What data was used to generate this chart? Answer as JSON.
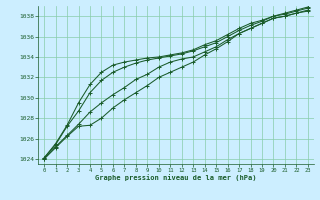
{
  "xlabel": "Graphe pression niveau de la mer (hPa)",
  "ylim": [
    1023.5,
    1039.0
  ],
  "xlim": [
    -0.5,
    23.5
  ],
  "yticks": [
    1024,
    1026,
    1028,
    1030,
    1032,
    1034,
    1036,
    1038
  ],
  "xticks": [
    0,
    1,
    2,
    3,
    4,
    5,
    6,
    7,
    8,
    9,
    10,
    11,
    12,
    13,
    14,
    15,
    16,
    17,
    18,
    19,
    20,
    21,
    22,
    23
  ],
  "bg_color": "#cceeff",
  "grid_color": "#88ccaa",
  "line_color": "#1a5c2a",
  "lines": [
    [
      1024.0,
      1025.1,
      1026.2,
      1027.2,
      1027.3,
      1028.0,
      1029.0,
      1029.8,
      1030.5,
      1031.2,
      1032.0,
      1032.5,
      1033.0,
      1033.5,
      1034.2,
      1034.8,
      1035.5,
      1036.3,
      1036.8,
      1037.3,
      1037.8,
      1038.0,
      1038.3,
      1038.5
    ],
    [
      1024.0,
      1025.2,
      1026.3,
      1027.4,
      1028.6,
      1029.5,
      1030.3,
      1031.0,
      1031.8,
      1032.3,
      1033.0,
      1033.5,
      1033.8,
      1034.0,
      1034.5,
      1035.0,
      1035.7,
      1036.3,
      1036.8,
      1037.3,
      1037.8,
      1038.0,
      1038.3,
      1038.6
    ],
    [
      1024.1,
      1025.4,
      1027.2,
      1028.7,
      1030.5,
      1031.7,
      1032.5,
      1033.0,
      1033.4,
      1033.7,
      1033.9,
      1034.1,
      1034.3,
      1034.6,
      1035.0,
      1035.4,
      1036.0,
      1036.6,
      1037.1,
      1037.5,
      1038.0,
      1038.2,
      1038.5,
      1038.8
    ],
    [
      1024.1,
      1025.5,
      1027.3,
      1029.5,
      1031.3,
      1032.5,
      1033.2,
      1033.5,
      1033.7,
      1033.9,
      1034.0,
      1034.2,
      1034.4,
      1034.7,
      1035.2,
      1035.6,
      1036.2,
      1036.8,
      1037.3,
      1037.6,
      1038.0,
      1038.3,
      1038.6,
      1038.9
    ]
  ],
  "marker": "+",
  "markersize": 3.5,
  "linewidth": 0.75
}
